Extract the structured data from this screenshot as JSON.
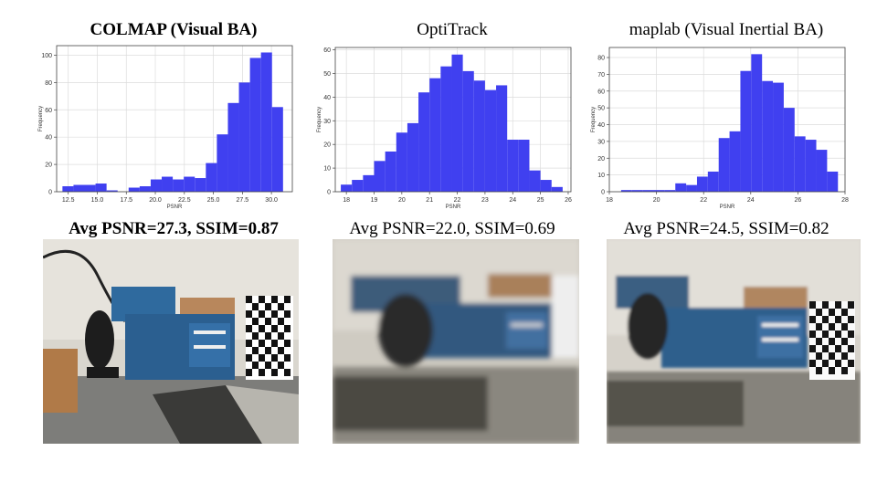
{
  "panels": [
    {
      "title": "COLMAP (Visual BA)",
      "title_bold": true,
      "metric_text": "Avg PSNR=27.3, SSIM=0.87",
      "metric_bold": true,
      "render_image": "warehouse-scene-colmap-render"
    },
    {
      "title": "OptiTrack",
      "title_bold": false,
      "metric_text": "Avg PSNR=22.0, SSIM=0.69",
      "metric_bold": false,
      "render_image": "warehouse-scene-optitrack-render"
    },
    {
      "title": "maplab (Visual Inertial BA)",
      "title_bold": false,
      "metric_text": "Avg PSNR=24.5, SSIM=0.82",
      "metric_bold": false,
      "render_image": "warehouse-scene-maplab-render"
    }
  ],
  "chart_data": [
    {
      "type": "bar",
      "title": "COLMAP (Visual BA)",
      "xlabel": "PSNR",
      "ylabel": "Frequency",
      "bar_color": "#4040f0",
      "xlim": [
        11.5,
        31.8
      ],
      "ylim": [
        0,
        107
      ],
      "xticks": [
        "12.5",
        "15.0",
        "17.5",
        "20.0",
        "22.5",
        "25.0",
        "27.5",
        "30.0"
      ],
      "yticks": [
        "0",
        "20",
        "40",
        "60",
        "80",
        "100"
      ],
      "bin_edges": [
        12.0,
        12.95,
        13.9,
        14.85,
        15.8,
        16.75,
        17.7,
        18.65,
        19.6,
        20.55,
        21.5,
        22.45,
        23.4,
        24.35,
        25.3,
        26.25,
        27.2,
        28.15,
        29.1,
        30.05,
        31.0
      ],
      "values": [
        4,
        5,
        5,
        6,
        1,
        0,
        3,
        4,
        9,
        11,
        9,
        11,
        10,
        21,
        42,
        65,
        80,
        98,
        102,
        62
      ],
      "grid": true
    },
    {
      "type": "bar",
      "title": "OptiTrack",
      "xlabel": "PSNR",
      "ylabel": "Frequency",
      "bar_color": "#4040f0",
      "xlim": [
        17.6,
        26.1
      ],
      "ylim": [
        0,
        61
      ],
      "xticks": [
        "18",
        "19",
        "20",
        "21",
        "22",
        "23",
        "24",
        "25",
        "26"
      ],
      "yticks": [
        "0",
        "10",
        "20",
        "30",
        "40",
        "50",
        "60"
      ],
      "bin_edges": [
        17.8,
        18.2,
        18.6,
        19.0,
        19.4,
        19.8,
        20.2,
        20.6,
        21.0,
        21.4,
        21.8,
        22.2,
        22.6,
        23.0,
        23.4,
        23.8,
        24.2,
        24.6,
        25.0,
        25.4,
        25.8
      ],
      "values": [
        3,
        5,
        7,
        13,
        17,
        25,
        29,
        42,
        48,
        53,
        58,
        51,
        47,
        43,
        45,
        22,
        22,
        9,
        5,
        2
      ],
      "grid": true
    },
    {
      "type": "bar",
      "title": "maplab (Visual Inertial BA)",
      "xlabel": "PSNR",
      "ylabel": "Frequency",
      "bar_color": "#4040f0",
      "xlim": [
        18.0,
        28.0
      ],
      "ylim": [
        0,
        86
      ],
      "xticks": [
        "18",
        "20",
        "22",
        "24",
        "26",
        "28"
      ],
      "yticks": [
        "0",
        "10",
        "20",
        "30",
        "40",
        "50",
        "60",
        "70",
        "80"
      ],
      "bin_edges": [
        18.5,
        18.96,
        19.42,
        19.88,
        20.34,
        20.8,
        21.26,
        21.72,
        22.18,
        22.64,
        23.1,
        23.56,
        24.02,
        24.48,
        24.94,
        25.4,
        25.86,
        26.32,
        26.78,
        27.24,
        27.7
      ],
      "values": [
        1,
        1,
        1,
        1,
        1,
        5,
        4,
        9,
        12,
        32,
        36,
        72,
        82,
        66,
        65,
        50,
        33,
        31,
        25,
        12
      ],
      "grid": true
    }
  ]
}
